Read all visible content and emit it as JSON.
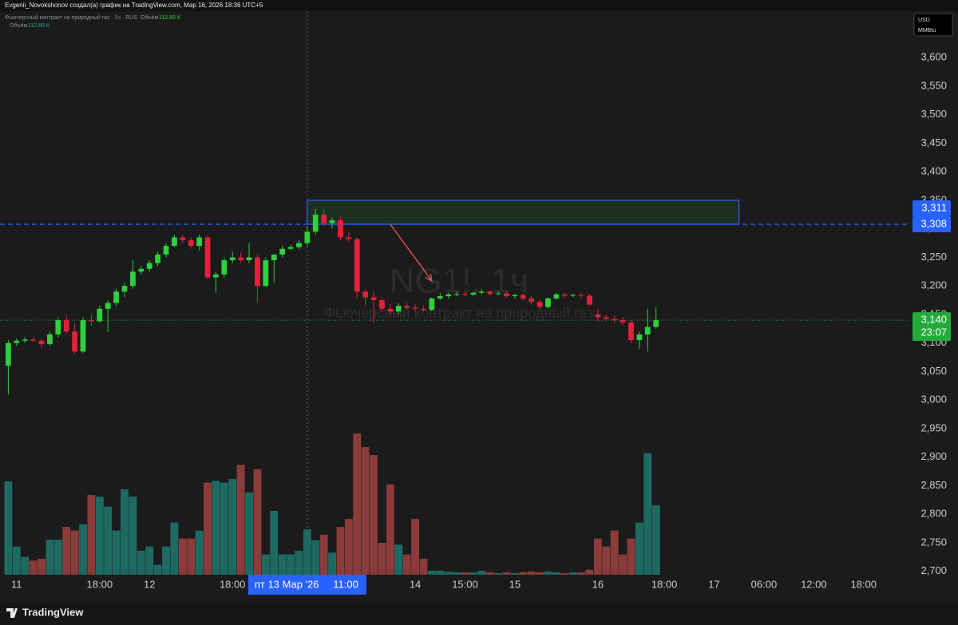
{
  "header": {
    "author_line": "Evgenii_Novokshonov создал(а) график на TradingView.com, Мар 16, 2026 18:36 UTC+5",
    "symbol_line": "Фьючерсный контракт на природный газ · 1ч · RUS",
    "volume_title": "Объём",
    "currency": "USD",
    "unit": "MMBtu"
  },
  "footer": {
    "brand": "TradingView"
  },
  "chart_data": {
    "type": "candlestick",
    "title": "NG1!, 1ч",
    "subtitle": "Фьючерсный контракт на природный газ",
    "up_color": "#2fd03c",
    "down_color": "#e3213a",
    "volume_up_color": "#1e6a63",
    "volume_down_color": "#8a3b3a",
    "open": [
      3060,
      3100,
      3104,
      3106,
      3104,
      3098,
      3115,
      3140,
      3120,
      3085,
      3140,
      3138,
      3160,
      3170,
      3190,
      3200,
      3225,
      3230,
      3240,
      3255,
      3270,
      3285,
      3280,
      3270,
      3285,
      3215,
      3220,
      3245,
      3250,
      3245,
      3250,
      3200,
      3245,
      3255,
      3265,
      3268,
      3275,
      3295,
      3325,
      3310,
      3315,
      3285,
      3282,
      3190,
      3180,
      3175,
      3160,
      3155,
      3165,
      3162,
      3160,
      3158,
      3178,
      3182,
      3185,
      3186,
      3185,
      3188,
      3190,
      3186,
      3187,
      3182,
      3184,
      3178,
      3172,
      3163,
      3178,
      3185,
      3183,
      3184,
      3183,
      3150,
      3145,
      3142,
      3140,
      3136,
      3105,
      3115,
      3128
    ],
    "high": [
      3105,
      3108,
      3110,
      3110,
      3108,
      3120,
      3145,
      3150,
      3135,
      3145,
      3150,
      3165,
      3175,
      3195,
      3205,
      3245,
      3235,
      3245,
      3260,
      3275,
      3290,
      3290,
      3285,
      3290,
      3288,
      3225,
      3250,
      3260,
      3258,
      3275,
      3255,
      3250,
      3255,
      3270,
      3272,
      3280,
      3305,
      3335,
      3335,
      3320,
      3320,
      3295,
      3285,
      3195,
      3190,
      3180,
      3168,
      3170,
      3170,
      3168,
      3165,
      3180,
      3188,
      3188,
      3190,
      3190,
      3190,
      3195,
      3192,
      3190,
      3190,
      3186,
      3186,
      3182,
      3175,
      3180,
      3188,
      3188,
      3186,
      3188,
      3186,
      3160,
      3150,
      3148,
      3145,
      3140,
      3120,
      3160,
      3162
    ],
    "low": [
      3010,
      3095,
      3100,
      3102,
      3090,
      3095,
      3110,
      3115,
      3080,
      3082,
      3130,
      3135,
      3120,
      3165,
      3180,
      3195,
      3220,
      3225,
      3235,
      3250,
      3268,
      3275,
      3265,
      3262,
      3212,
      3188,
      3215,
      3240,
      3240,
      3240,
      3172,
      3198,
      3205,
      3250,
      3262,
      3265,
      3270,
      3290,
      3305,
      3300,
      3280,
      3278,
      3180,
      3165,
      3135,
      3155,
      3150,
      3150,
      3158,
      3155,
      3155,
      3156,
      3175,
      3178,
      3182,
      3182,
      3182,
      3185,
      3183,
      3183,
      3180,
      3178,
      3175,
      3168,
      3160,
      3160,
      3176,
      3180,
      3180,
      3180,
      3165,
      3138,
      3138,
      3135,
      3132,
      3100,
      3090,
      3085,
      3125
    ],
    "close": [
      3100,
      3104,
      3106,
      3104,
      3098,
      3115,
      3140,
      3120,
      3085,
      3140,
      3138,
      3160,
      3170,
      3190,
      3200,
      3225,
      3230,
      3240,
      3255,
      3270,
      3285,
      3280,
      3270,
      3285,
      3215,
      3220,
      3245,
      3250,
      3245,
      3250,
      3200,
      3245,
      3255,
      3265,
      3268,
      3275,
      3295,
      3325,
      3310,
      3315,
      3285,
      3282,
      3190,
      3180,
      3175,
      3160,
      3155,
      3165,
      3162,
      3160,
      3158,
      3178,
      3182,
      3185,
      3186,
      3185,
      3188,
      3190,
      3186,
      3187,
      3182,
      3184,
      3178,
      3172,
      3163,
      3178,
      3185,
      3183,
      3184,
      3183,
      3167,
      3145,
      3142,
      3140,
      3136,
      3105,
      3115,
      3128,
      3140
    ],
    "volume": [
      152,
      46,
      29,
      23,
      26,
      57,
      57,
      78,
      72,
      82,
      130,
      127,
      111,
      72,
      139,
      127,
      39,
      46,
      16,
      46,
      85,
      59,
      59,
      72,
      150,
      153,
      150,
      156,
      179,
      134,
      172,
      33,
      104,
      33,
      33,
      39,
      74,
      56,
      65,
      36,
      78,
      91,
      230,
      208,
      195,
      52,
      147,
      49,
      33,
      91,
      26,
      6.5,
      6.5,
      5,
      4,
      4,
      4,
      6.5,
      4,
      2.6,
      4,
      2.6,
      4,
      5,
      4,
      5,
      4,
      2.6,
      4,
      4,
      8,
      59,
      46,
      72,
      33,
      59,
      85,
      198,
      112.89
    ],
    "volume_label": {
      "value": 112.89,
      "label": "112,89 K"
    },
    "volume_ylim": [
      0,
      234
    ],
    "xlim": [
      -1,
      108.6
    ],
    "xticks": [
      {
        "value": 1,
        "label": "11"
      },
      {
        "value": 11,
        "label": "18:00"
      },
      {
        "value": 17,
        "label": "12"
      },
      {
        "value": 27,
        "label": "18:00"
      },
      {
        "value": 49,
        "label": "14"
      },
      {
        "value": 55,
        "label": "15:00"
      },
      {
        "value": 61,
        "label": "15"
      },
      {
        "value": 71,
        "label": "16"
      },
      {
        "value": 79,
        "label": "18:00"
      },
      {
        "value": 85,
        "label": "17"
      },
      {
        "value": 91,
        "label": "06:00"
      },
      {
        "value": 97,
        "label": "12:00"
      },
      {
        "value": 103,
        "label": "18:00"
      }
    ],
    "ylim": [
      2673,
      3645
    ],
    "yticks": [
      {
        "value": 2700,
        "label": "2,700"
      },
      {
        "value": 2750,
        "label": "2,750"
      },
      {
        "value": 2800,
        "label": "2,800"
      },
      {
        "value": 2850,
        "label": "2,850"
      },
      {
        "value": 2900,
        "label": "2,900"
      },
      {
        "value": 2950,
        "label": "2,950"
      },
      {
        "value": 3000,
        "label": "3,000"
      },
      {
        "value": 3050,
        "label": "3,050"
      },
      {
        "value": 3100,
        "label": "3,100"
      },
      {
        "value": 3150,
        "label": "3,150"
      },
      {
        "value": 3200,
        "label": "3,200"
      },
      {
        "value": 3250,
        "label": "3,250"
      },
      {
        "value": 3300,
        "label": "3,300"
      },
      {
        "value": 3350,
        "label": "3,350"
      },
      {
        "value": 3400,
        "label": "3,400"
      },
      {
        "value": 3450,
        "label": "3,450"
      },
      {
        "value": 3500,
        "label": "3,500"
      },
      {
        "value": 3550,
        "label": "3,550"
      },
      {
        "value": 3600,
        "label": "3,600"
      }
    ],
    "zone": {
      "from": 36,
      "to": 88,
      "top": 3350,
      "bottom": 3308,
      "color": "#2962ff"
    },
    "level_labels": [
      {
        "value": 3311,
        "label": "3,311"
      },
      {
        "value": 3308,
        "label": "3,308"
      }
    ],
    "level_color": "#2962ff",
    "last_price": {
      "value": 3140,
      "label": "3,140",
      "countdown": "23:07",
      "color": "#22ab3a"
    },
    "crosshair": {
      "x": 36,
      "date": "пт 13 Мар '26",
      "time": "11:00"
    },
    "arrow": {
      "from": [
        46,
        3308
      ],
      "to": [
        51,
        3209
      ],
      "color": "#f0555a"
    }
  }
}
